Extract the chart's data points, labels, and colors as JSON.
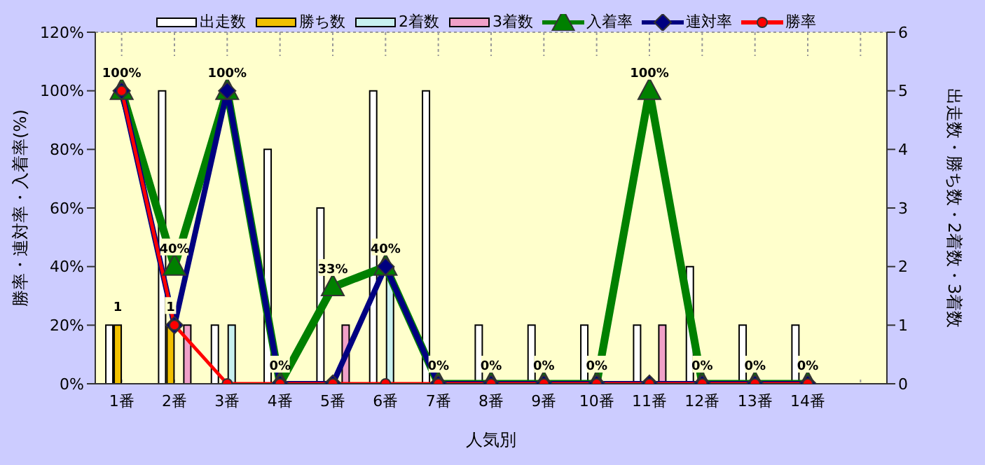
{
  "chart_data": {
    "type": "bar",
    "xlabel": "人気別",
    "ylabel": "勝率・連対率・入着率(%)",
    "y2label": "出走数・勝ち数・2着数・3着数",
    "categories": [
      "1番",
      "2番",
      "3番",
      "4番",
      "5番",
      "6番",
      "7番",
      "8番",
      "9番",
      "10番",
      "11番",
      "12番",
      "13番",
      "14番",
      null
    ],
    "series": [
      {
        "name": "出走数",
        "axis": "y2",
        "color": "#ffffff",
        "values": [
          1,
          5,
          1,
          4,
          3,
          5,
          5,
          1,
          1,
          1,
          1,
          2,
          1,
          1,
          null
        ]
      },
      {
        "name": "勝ち数",
        "axis": "y2",
        "color": "#f0c000",
        "values": [
          1,
          1,
          0,
          0,
          0,
          0,
          0,
          0,
          0,
          0,
          0,
          0,
          0,
          0,
          null
        ],
        "value_labels": [
          "1",
          "1",
          null,
          null,
          null,
          null,
          null,
          null,
          null,
          null,
          null,
          null,
          null,
          null,
          null
        ]
      },
      {
        "name": "2着数",
        "axis": "y2",
        "color": "#c8f0f0",
        "values": [
          0,
          0,
          1,
          0,
          0,
          2,
          0,
          0,
          0,
          0,
          0,
          0,
          0,
          0,
          null
        ]
      },
      {
        "name": "3着数",
        "axis": "y2",
        "color": "#f0a0c8",
        "values": [
          0,
          1,
          0,
          0,
          1,
          0,
          0,
          0,
          0,
          0,
          1,
          0,
          0,
          0,
          null
        ]
      },
      {
        "name": "入着率",
        "type": "line",
        "axis": "y",
        "color": "#008000",
        "marker": "triangle",
        "values": [
          100,
          40,
          100,
          0,
          33,
          40,
          0,
          0,
          0,
          0,
          100,
          0,
          0,
          0,
          null
        ],
        "value_labels": [
          "100%",
          "40%",
          "100%",
          "0%",
          "33%",
          "40%",
          "0%",
          "0%",
          "0%",
          "0%",
          "100%",
          "0%",
          "0%",
          "0%",
          null
        ]
      },
      {
        "name": "連対率",
        "type": "line",
        "axis": "y",
        "color": "#000080",
        "marker": "diamond",
        "values": [
          100,
          20,
          100,
          0,
          0,
          40,
          0,
          0,
          0,
          0,
          0,
          0,
          0,
          0,
          null
        ]
      },
      {
        "name": "勝率",
        "type": "line",
        "axis": "y",
        "color": "#ff0000",
        "marker": "circle",
        "values": [
          100,
          20,
          0,
          0,
          0,
          0,
          0,
          0,
          0,
          0,
          0,
          0,
          0,
          0,
          null
        ]
      }
    ],
    "ylim": [
      0,
      120
    ],
    "yticks": [
      {
        "value": 0,
        "label": "0%"
      },
      {
        "value": 20,
        "label": "20%"
      },
      {
        "value": 40,
        "label": "40%"
      },
      {
        "value": 60,
        "label": "60%"
      },
      {
        "value": 80,
        "label": "80%"
      },
      {
        "value": 100,
        "label": "100%"
      },
      {
        "value": 120,
        "label": "120%"
      }
    ],
    "y2lim": [
      0,
      6
    ],
    "y2ticks": [
      0,
      1,
      2,
      3,
      4,
      5,
      6
    ],
    "grid": true,
    "legend": "top"
  }
}
